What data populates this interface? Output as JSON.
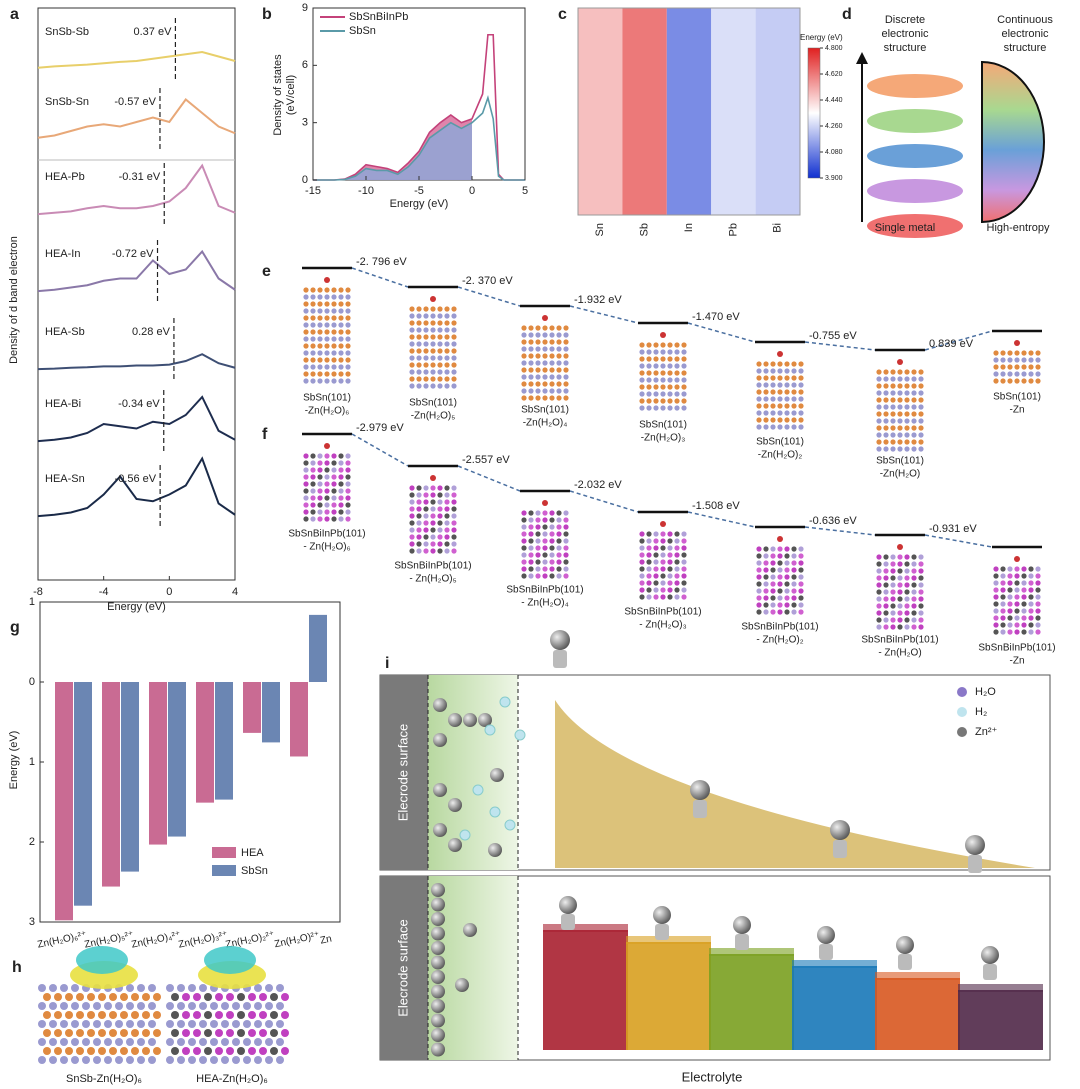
{
  "panel_labels": [
    "a",
    "b",
    "c",
    "d",
    "e",
    "f",
    "g",
    "h",
    "i"
  ],
  "chart_data": [
    {
      "type": "line",
      "xlabel": "Energy (eV)",
      "ylabel": "Density of d band electron",
      "x": [
        -8,
        -7,
        -6,
        -5,
        -4,
        -3,
        -2,
        -1,
        0,
        1,
        2,
        3,
        4
      ],
      "xlim": [
        -8,
        4
      ],
      "xticks": [
        -8,
        -4,
        0,
        4
      ],
      "series": [
        {
          "name": "SnSb-Sb",
          "color": "#e8cf6a",
          "values": [
            0.05,
            0.08,
            0.1,
            0.12,
            0.15,
            0.18,
            0.2,
            0.25,
            0.3,
            0.35,
            0.4,
            0.3,
            0.2
          ],
          "d_band_center": 0.37,
          "d_band_label": "0.37 eV"
        },
        {
          "name": "SnSb-Sn",
          "color": "#e8a878",
          "values": [
            0.05,
            0.1,
            0.2,
            0.3,
            0.35,
            0.3,
            0.4,
            0.5,
            0.4,
            0.9,
            0.6,
            0.3,
            0.15
          ],
          "d_band_center": -0.57,
          "d_band_label": "-0.57 eV"
        },
        {
          "name": "HEA-Pb",
          "color": "#c98bb5",
          "values": [
            0.02,
            0.05,
            0.08,
            0.15,
            0.2,
            0.15,
            0.15,
            0.2,
            0.3,
            0.6,
            1.1,
            0.2,
            0.05
          ],
          "d_band_center": -0.31,
          "d_band_label": "-0.31 eV"
        },
        {
          "name": "HEA-In",
          "color": "#8a78a8",
          "values": [
            0.02,
            0.05,
            0.1,
            0.15,
            0.25,
            0.3,
            0.3,
            0.7,
            0.4,
            0.5,
            0.9,
            0.3,
            0.05
          ],
          "d_band_center": -0.72,
          "d_band_label": "-0.72 eV"
        },
        {
          "name": "HEA-Sb",
          "color": "#3e4f74",
          "values": [
            0.02,
            0.03,
            0.05,
            0.06,
            0.08,
            0.08,
            0.1,
            0.1,
            0.12,
            0.2,
            0.35,
            0.15,
            0.05
          ],
          "d_band_center": 0.28,
          "d_band_label": "0.28 eV"
        },
        {
          "name": "HEA-Bi",
          "color": "#1e2d4f",
          "values": [
            0.02,
            0.05,
            0.1,
            0.2,
            0.4,
            0.35,
            0.3,
            0.45,
            0.4,
            0.6,
            1.0,
            0.25,
            0.05
          ],
          "d_band_center": -0.34,
          "d_band_label": "-0.34 eV"
        },
        {
          "name": "HEA-Sn",
          "color": "#1a2a48",
          "values": [
            0.02,
            0.05,
            0.1,
            0.2,
            0.5,
            0.9,
            0.4,
            0.35,
            0.5,
            0.7,
            1.3,
            0.3,
            0.05
          ],
          "d_band_center": -0.56,
          "d_band_label": "-0.56 eV"
        }
      ]
    },
    {
      "type": "area",
      "xlabel": "Energy (eV)",
      "ylabel": [
        "Density of states",
        "(eV/cell)"
      ],
      "x": [
        -15,
        -13,
        -12,
        -11,
        -10,
        -9,
        -8,
        -7,
        -6,
        -5,
        -4,
        -3,
        -2,
        -1,
        0,
        1,
        1.5,
        2,
        2.5,
        3,
        5
      ],
      "xlim": [
        -15,
        5
      ],
      "xticks": [
        -15,
        -10,
        -5,
        0,
        5
      ],
      "ylim": [
        0,
        9
      ],
      "yticks": [
        0,
        3,
        6,
        9
      ],
      "series": [
        {
          "name": "SbSnBiInPb",
          "color": "#c4427a",
          "fill": "#d9709c",
          "values": [
            0,
            0,
            0.05,
            0.3,
            0.8,
            0.7,
            0.6,
            0.4,
            0.9,
            1.5,
            2.5,
            3.0,
            3.4,
            3.0,
            3.2,
            4.5,
            7.6,
            7.6,
            0.3,
            0,
            0
          ]
        },
        {
          "name": "SbSn",
          "color": "#5a9aa8",
          "fill": "#8fa6d6",
          "values": [
            0,
            0,
            0.03,
            0.2,
            0.6,
            0.5,
            0.5,
            0.3,
            0.7,
            1.3,
            2.2,
            2.6,
            3.0,
            2.7,
            3.0,
            3.5,
            4.3,
            3.2,
            0.2,
            0,
            0
          ]
        }
      ]
    },
    {
      "type": "heatmap",
      "categories": [
        "Sn",
        "Sb",
        "In",
        "Pb",
        "Bi"
      ],
      "values": [
        4.48,
        4.62,
        4.1,
        4.28,
        4.24
      ],
      "colorbar_title": "Energy (eV)",
      "clim": [
        3.9,
        4.8
      ],
      "cticks": [
        {
          "value": 3.9,
          "label": "3.900"
        },
        {
          "value": 4.08,
          "label": "4.080"
        },
        {
          "value": 4.26,
          "label": "4.260"
        },
        {
          "value": 4.44,
          "label": "4.440"
        },
        {
          "value": 4.62,
          "label": "4.620"
        },
        {
          "value": 4.8,
          "label": "4.800"
        }
      ]
    },
    {
      "type": "grouped_bar",
      "ylabel": "Energy (eV)",
      "state_labels": [
        "Zn(H₂O)₆²⁺",
        "Zn(H₂O)₅²⁺",
        "Zn(H₂O)₄²⁺",
        "Zn(H₂O)₃²⁺",
        "Zn(H₂O)₂²⁺",
        "Zn(H₂O)²⁺",
        "Zn"
      ],
      "ylim": [
        -3,
        1
      ],
      "yticks": [
        1,
        0,
        {
          "value": -1,
          "label": "1"
        },
        {
          "value": -2,
          "label": "2"
        },
        {
          "value": -3,
          "label": "3"
        }
      ],
      "series": [
        {
          "name": "HEA",
          "color": "#c96b93",
          "values": [
            -2.979,
            -2.557,
            -2.032,
            -1.508,
            -0.636,
            -0.931
          ]
        },
        {
          "name": "SbSn",
          "color": "#6b86b3",
          "values": [
            -2.796,
            -2.37,
            -1.932,
            -1.47,
            -0.755,
            0.839
          ]
        }
      ]
    }
  ],
  "electronic_structure": {
    "left_title": [
      "Discrete",
      "electronic",
      "structure"
    ],
    "right_title": [
      "Continuous",
      "electronic",
      "structure"
    ],
    "left_label": "Single metal",
    "right_label": "High-entropy"
  },
  "adsorption_sbsn": {
    "states": [
      [
        "SbSn(101)",
        "-Zn(H₂O)₆"
      ],
      [
        "SbSn(101)",
        "-Zn(H₂O)₅"
      ],
      [
        "SbSn(101)",
        "-Zn(H₂O)₄"
      ],
      [
        "SbSn(101)",
        "-Zn(H₂O)₃"
      ],
      [
        "SbSn(101)",
        "-Zn(H₂O)₂"
      ],
      [
        "SbSn(101)",
        "-Zn(H₂O)"
      ],
      [
        "SbSn(101)",
        "-Zn"
      ]
    ],
    "energies": [
      -2.796,
      -2.37,
      -1.932,
      -1.47,
      -0.755,
      0.839
    ],
    "energy_labels": [
      "-2. 796 eV",
      "-2. 370 eV",
      "-1.932 eV",
      "-1.470 eV",
      "-0.755 eV",
      "0.839 eV"
    ]
  },
  "adsorption_hea": {
    "states": [
      [
        "SbSnBiInPb(101)",
        "- Zn(H₂O)₆"
      ],
      [
        "SbSnBiInPb(101)",
        "- Zn(H₂O)₅"
      ],
      [
        "SbSnBiInPb(101)",
        "- Zn(H₂O)₄"
      ],
      [
        "SbSnBiInPb(101)",
        "- Zn(H₂O)₃"
      ],
      [
        "SbSnBiInPb(101)",
        "- Zn(H₂O)₂"
      ],
      [
        "SbSnBiInPb(101)",
        "- Zn(H₂O)"
      ],
      [
        "SbSnBiInPb(101)",
        "-Zn"
      ]
    ],
    "energies": [
      -2.979,
      -2.557,
      -2.032,
      -1.508,
      -0.636,
      -0.931
    ],
    "energy_labels": [
      "-2.979 eV",
      "-2.557 eV",
      "-2.032 eV",
      "-1.508 eV",
      "-0.636 eV",
      "-0.931 eV"
    ]
  },
  "charge_density": {
    "labels": [
      "SnSb-Zn(H₂O)₆",
      "HEA-Zn(H₂O)₆"
    ]
  },
  "schematic": {
    "surface_labels": [
      "Elecrode surface",
      "Elecrode surface"
    ],
    "legend": [
      "H₂O",
      "H₂",
      "Zn²⁺"
    ],
    "xlabel": "Electrolyte"
  }
}
